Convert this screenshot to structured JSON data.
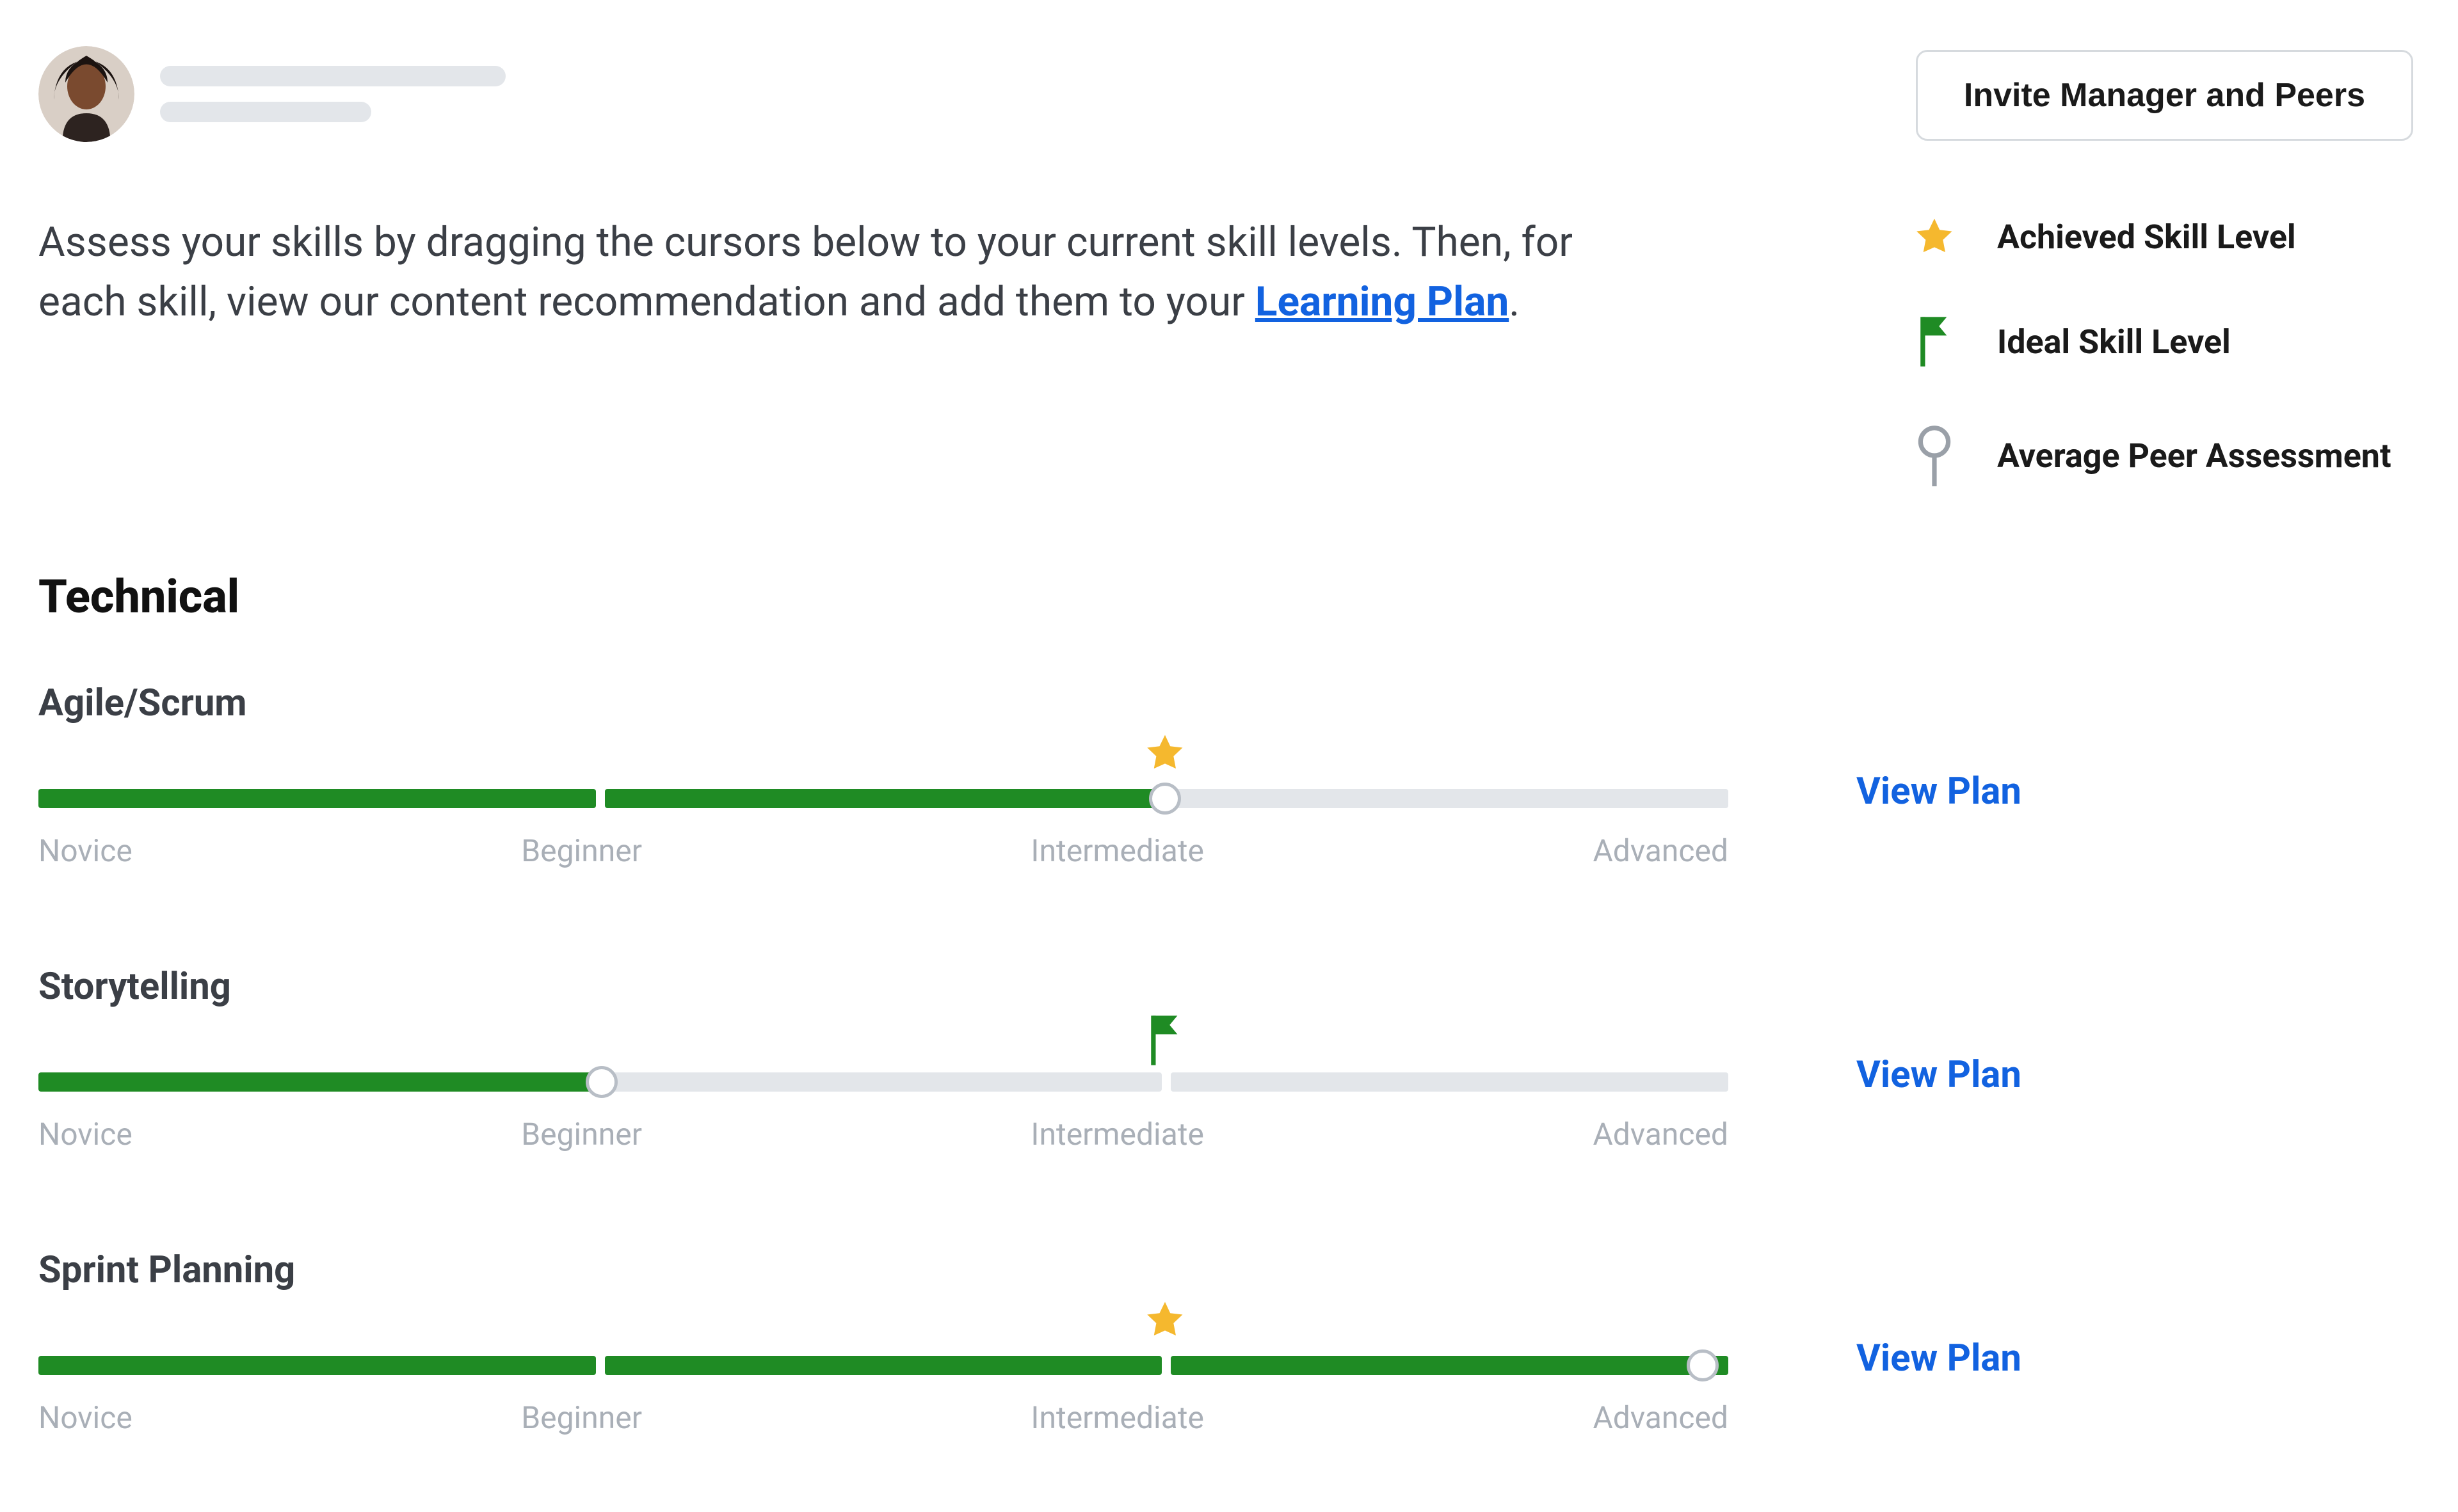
{
  "colors": {
    "text_primary": "#1a1a1a",
    "text_muted": "#3b3f46",
    "text_light": "#a9afb7",
    "link": "#1262e0",
    "track_bg": "#e3e6ea",
    "track_fill": "#1f8b24",
    "star": "#f5b82e",
    "flag": "#1f8b24",
    "pin_stroke": "#9aa0a8",
    "btn_border": "#d6dade"
  },
  "header": {
    "invite_label": "Invite Manager and Peers"
  },
  "intro": {
    "text_before": "Assess your skills by dragging the cursors below to your current skill levels. Then, for each skill, view our content recommendation and add them to your ",
    "link_text": "Learning Plan",
    "text_after": "."
  },
  "legend": {
    "items": [
      {
        "icon": "star",
        "label": "Achieved Skill Level"
      },
      {
        "icon": "flag",
        "label": "Ideal Skill Level"
      },
      {
        "icon": "pin",
        "label": "Average Peer Assessment"
      }
    ]
  },
  "section_title": "Technical",
  "level_labels": [
    "Novice",
    "Beginner",
    "Intermediate",
    "Advanced"
  ],
  "view_plan_label": "View Plan",
  "skills": [
    {
      "name": "Agile/Scrum",
      "segments_filled": 2,
      "segments_total": 3,
      "cursor_percent": 66.67,
      "marker": {
        "type": "star",
        "percent": 66.67
      }
    },
    {
      "name": "Storytelling",
      "segments_filled": 1,
      "segments_total": 3,
      "cursor_percent": 33.33,
      "marker": {
        "type": "flag",
        "percent": 66.67
      }
    },
    {
      "name": "Sprint Planning",
      "segments_filled": 3,
      "segments_total": 3,
      "cursor_percent": 98.5,
      "marker": {
        "type": "star",
        "percent": 66.67
      }
    }
  ]
}
